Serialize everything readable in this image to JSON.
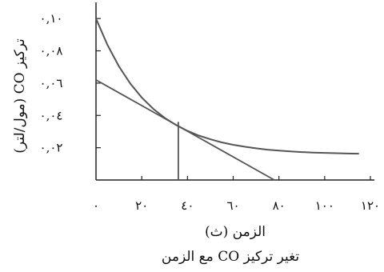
{
  "chart_data": {
    "type": "line",
    "title": "تغير تركيز CO مع الزمن",
    "xlabel": "الزمن (ث)",
    "ylabel": "تركيز CO (مول/لتر)",
    "xlim": [
      0,
      120
    ],
    "ylim": [
      0,
      0.11
    ],
    "x_ticks": [
      0,
      20,
      40,
      60,
      80,
      100,
      120
    ],
    "x_tick_labels": [
      "٠",
      "٢٠",
      "٤٠",
      "٦٠",
      "٨٠",
      "١٠٠",
      "١٢٠"
    ],
    "y_ticks": [
      0.02,
      0.04,
      0.06,
      0.08,
      0.1
    ],
    "y_tick_labels": [
      "٠,٠٢",
      "٠,٠٤",
      "٠,٠٦",
      "٠,٠٨",
      "٠,١٠"
    ],
    "grid": false,
    "series": [
      {
        "values_x": [
          0,
          5,
          10,
          15,
          20,
          25,
          30,
          35,
          40,
          45,
          50,
          55,
          60,
          65,
          70,
          75,
          80,
          85,
          90,
          95,
          100,
          105,
          110,
          115
        ],
        "values_y": [
          0.1,
          0.0837,
          0.0704,
          0.0597,
          0.0511,
          0.0441,
          0.0385,
          0.0341,
          0.0304,
          0.0275,
          0.0252,
          0.0233,
          0.0218,
          0.0206,
          0.0196,
          0.0188,
          0.0182,
          0.0177,
          0.0173,
          0.017,
          0.0168,
          0.0166,
          0.0164,
          0.0163
        ]
      }
    ],
    "annotations": [
      {
        "type": "tangent-line",
        "x": [
          0,
          78
        ],
        "y": [
          0.062,
          0.0
        ]
      },
      {
        "type": "vertical-line",
        "x": [
          36,
          36
        ],
        "y": [
          0.0,
          0.036
        ]
      }
    ],
    "colors": {
      "line": "#555555",
      "axis": "#222222"
    }
  }
}
